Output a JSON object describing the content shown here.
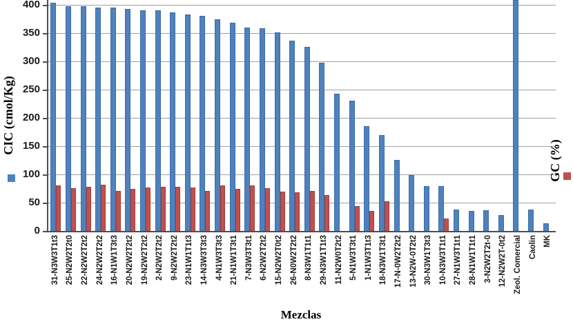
{
  "chart_data": {
    "type": "bar",
    "title": "",
    "xlabel": "Mezclas",
    "ylabel_left": "CIC (cmol/Kg)",
    "ylabel_right": "GC (%)",
    "ylim": [
      0,
      400
    ],
    "yticks": [
      0,
      50,
      100,
      150,
      200,
      250,
      300,
      350,
      400
    ],
    "grid": true,
    "legend_position": "rotated swatches beside each vertical axis title",
    "categories": [
      "31-N3W3T1t3",
      "25-N2W2T2t0",
      "22-N2W2T2t2",
      "24-N2W2T2t2",
      "16-N1W1T3t3",
      "20-N2W2T2t2",
      "19-N2W2T2t2",
      "2-N2W2T2t2",
      "9-N2W2T2t2",
      "23-N1W1T1t3",
      "14-N3W3T3t3",
      "4-N1W3T3t3",
      "21-N1W1T3t1",
      "7-N3W3T3t1",
      "6-N2W2T2t2",
      "15-N2W2T0t2",
      "26-N0W2T2t2",
      "8-N3W1T1t1",
      "29-N3W1T1t3",
      "11-N2W0T2t2",
      "5-N1W3T3t1",
      "1-N1W3T1t3",
      "18-N3W1T3t1",
      "17-N-0W2T2t2",
      "13-N2W-0T2t2",
      "30-N3W1T3t3",
      "10-N3W3T1t1",
      "27-N1W3T1t1",
      "28-N1W1T1t1",
      "3-N2W2T2t-0",
      "12-N2W2T-0t2",
      "Zeol. Comercial",
      "Caolin",
      "MK"
    ],
    "series": [
      {
        "name": "CIC (cmol/Kg)",
        "color": "#4F81BD",
        "values": [
          404,
          397,
          397,
          395,
          395,
          393,
          390,
          390,
          386,
          383,
          381,
          374,
          368,
          360,
          358,
          351,
          337,
          326,
          297,
          243,
          230,
          185,
          170,
          126,
          99,
          79,
          79,
          38,
          35,
          37,
          28,
          410,
          38,
          14
        ]
      },
      {
        "name": "GC (%)",
        "color": "#C0504D",
        "values": [
          80,
          76,
          78,
          82,
          71,
          75,
          77,
          78,
          78,
          77,
          71,
          80,
          75,
          80,
          76,
          70,
          68,
          71,
          64,
          0,
          44,
          35,
          52,
          0,
          0,
          0,
          22,
          0,
          0,
          0,
          0,
          0,
          0,
          0
        ]
      }
    ]
  },
  "colors": {
    "bar_blue": "#4F81BD",
    "bar_red": "#C0504D",
    "gridline": "#A0A0A0",
    "axis_line": "#4D4D4D",
    "tick_text": "#1A1A1A"
  }
}
